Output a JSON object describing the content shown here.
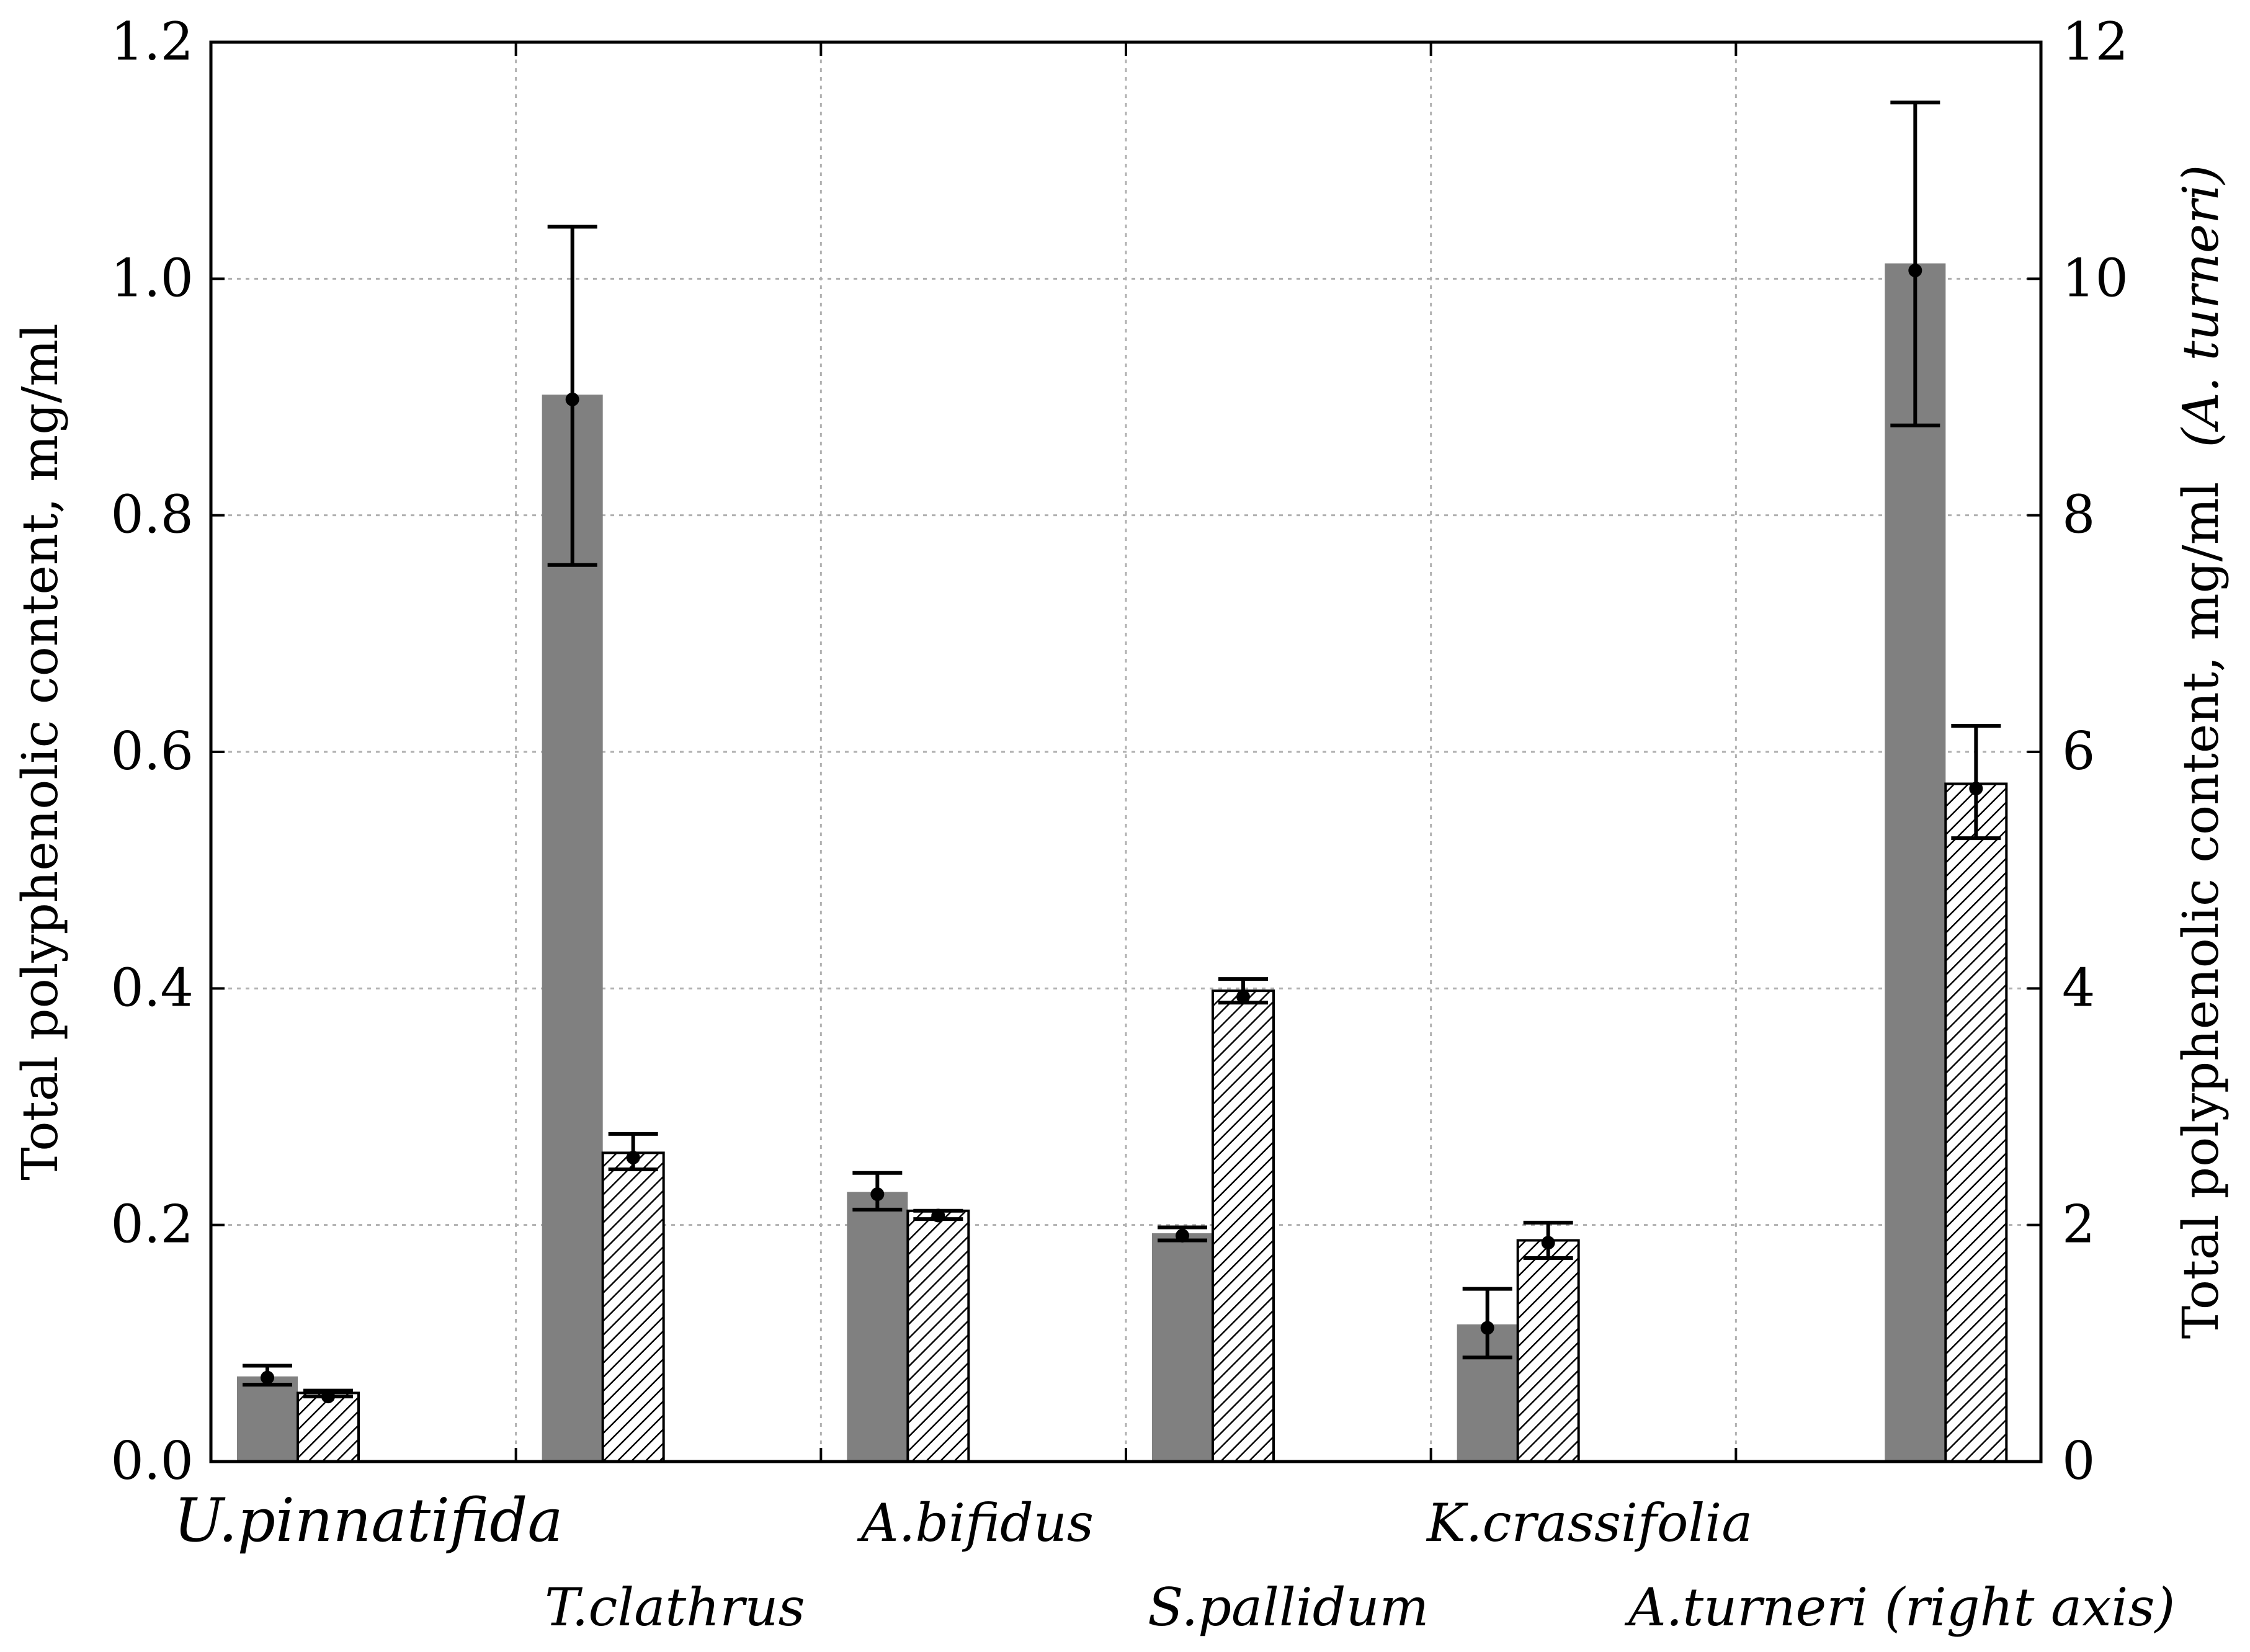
{
  "chart_data": {
    "type": "bar",
    "ylabel_left": "Total polyphenolic content, mg/ml",
    "ylabel_right": "Total polyphenolic content, mg/ml",
    "ylabel_right_suffix": "(A. turneri)",
    "ylim_left": [
      0,
      1.2
    ],
    "ylim_right": [
      0,
      12
    ],
    "left_ticks": [
      "0.0",
      "0.2",
      "0.4",
      "0.6",
      "0.8",
      "1.0",
      "1.2"
    ],
    "right_ticks": [
      "0",
      "2",
      "4",
      "6",
      "8",
      "10",
      "12"
    ],
    "grid": true,
    "categories": [
      "U.pinnatifida",
      "T.clathrus",
      "A.bifidus",
      "S.pallidum",
      "K.crassifolia",
      "A.turneri (right axis)"
    ],
    "category_axis": [
      "left",
      "left",
      "left",
      "left",
      "left",
      "right"
    ],
    "series": [
      {
        "name": "solid",
        "color": "#808080",
        "values": [
          0.072,
          0.902,
          0.228,
          0.193,
          0.116,
          10.13
        ],
        "means": [
          0.071,
          0.898,
          0.226,
          0.191,
          0.113,
          10.07
        ],
        "error_low": [
          0.065,
          0.758,
          0.213,
          0.187,
          0.088,
          8.76
        ],
        "error_high": [
          0.081,
          1.044,
          0.244,
          0.198,
          0.146,
          11.49
        ]
      },
      {
        "name": "hatched",
        "color": "#ffffff",
        "values": [
          0.058,
          0.261,
          0.212,
          0.398,
          0.187,
          5.73
        ],
        "means": [
          0.055,
          0.257,
          0.208,
          0.393,
          0.185,
          5.69
        ],
        "error_low": [
          0.055,
          0.247,
          0.205,
          0.388,
          0.172,
          5.27
        ],
        "error_high": [
          0.06,
          0.277,
          0.212,
          0.408,
          0.202,
          6.22
        ]
      }
    ]
  }
}
